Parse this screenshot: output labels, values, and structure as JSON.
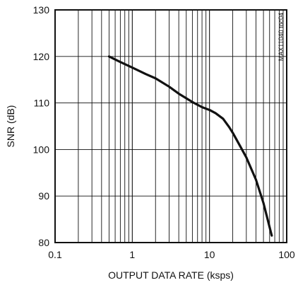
{
  "chart_data": {
    "type": "line",
    "title": "",
    "xlabel": "OUTPUT DATA RATE (ksps)",
    "ylabel": "SNR (dB)",
    "xscale": "log",
    "xlim": [
      0.1,
      100
    ],
    "ylim": [
      80,
      130
    ],
    "x_ticks": [
      "0.1",
      "1",
      "10",
      "100"
    ],
    "y_ticks": [
      "80",
      "90",
      "100",
      "110",
      "120",
      "130"
    ],
    "grid": true,
    "legend": "none",
    "corner_label": "MAX11040 toc04",
    "series": [
      {
        "x": [
          0.5,
          0.7,
          1,
          1.5,
          2,
          3,
          4,
          6,
          8,
          10,
          12,
          15,
          18,
          20,
          25,
          30,
          40,
          50,
          64
        ],
        "y": [
          120,
          118.8,
          117.6,
          116.2,
          115.3,
          113.5,
          112.0,
          110.2,
          109.1,
          108.5,
          107.8,
          106.6,
          104.8,
          103.6,
          100.7,
          98.3,
          93.5,
          88.5,
          81.5
        ]
      }
    ],
    "line_color": "#111111"
  }
}
